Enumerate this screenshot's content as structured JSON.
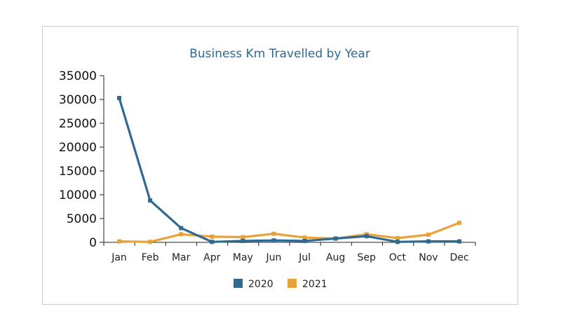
{
  "chart_data": {
    "type": "line",
    "title": "Business Km Travelled by Year",
    "xlabel": "",
    "ylabel": "",
    "categories": [
      "Jan",
      "Feb",
      "Mar",
      "Apr",
      "May",
      "Jun",
      "Jul",
      "Aug",
      "Sep",
      "Oct",
      "Nov",
      "Dec"
    ],
    "ylim": [
      0,
      35000
    ],
    "yticks": [
      "0",
      "5000",
      "10000",
      "15000",
      "20000",
      "25000",
      "30000",
      "35000"
    ],
    "grid": false,
    "legend": "bottom",
    "series": [
      {
        "name": "2020",
        "color": "#2e6a92",
        "values": [
          30300,
          8800,
          3000,
          100,
          300,
          400,
          300,
          800,
          1300,
          100,
          200,
          200
        ]
      },
      {
        "name": "2021",
        "color": "#e8a23a",
        "values": [
          200,
          100,
          1700,
          1200,
          1100,
          1800,
          1000,
          800,
          1700,
          900,
          1600,
          4100
        ]
      }
    ]
  }
}
